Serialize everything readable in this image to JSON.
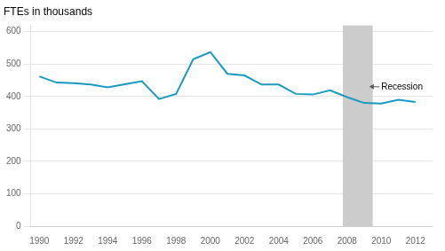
{
  "chart_data": {
    "type": "line",
    "ylabel": "FTEs in thousands",
    "x": [
      1990,
      1991,
      1992,
      1993,
      1994,
      1995,
      1996,
      1997,
      1998,
      1999,
      2000,
      2001,
      2002,
      2003,
      2004,
      2005,
      2006,
      2007,
      2008,
      2009,
      2010,
      2011,
      2012
    ],
    "values": [
      462,
      443,
      441,
      437,
      428,
      438,
      447,
      392,
      408,
      515,
      537,
      470,
      465,
      437,
      437,
      408,
      406,
      419,
      398,
      380,
      378,
      390,
      383
    ],
    "color": "#1a9abf",
    "xlim": [
      1989.5,
      2013.0
    ],
    "xticks": [
      1990,
      1992,
      1994,
      1996,
      1998,
      2000,
      2002,
      2004,
      2006,
      2008,
      2010,
      2012
    ],
    "ylim": [
      0,
      620
    ],
    "yticks": [
      0,
      100,
      200,
      300,
      400,
      500,
      600
    ],
    "grid": "y",
    "spans": [
      {
        "start": 2007.75,
        "end": 2009.5,
        "color": "#cccccc"
      }
    ],
    "annotations": [
      {
        "text": "Recession",
        "x": 2010.0,
        "y": 430,
        "arrow_x": 2009.3
      }
    ]
  }
}
